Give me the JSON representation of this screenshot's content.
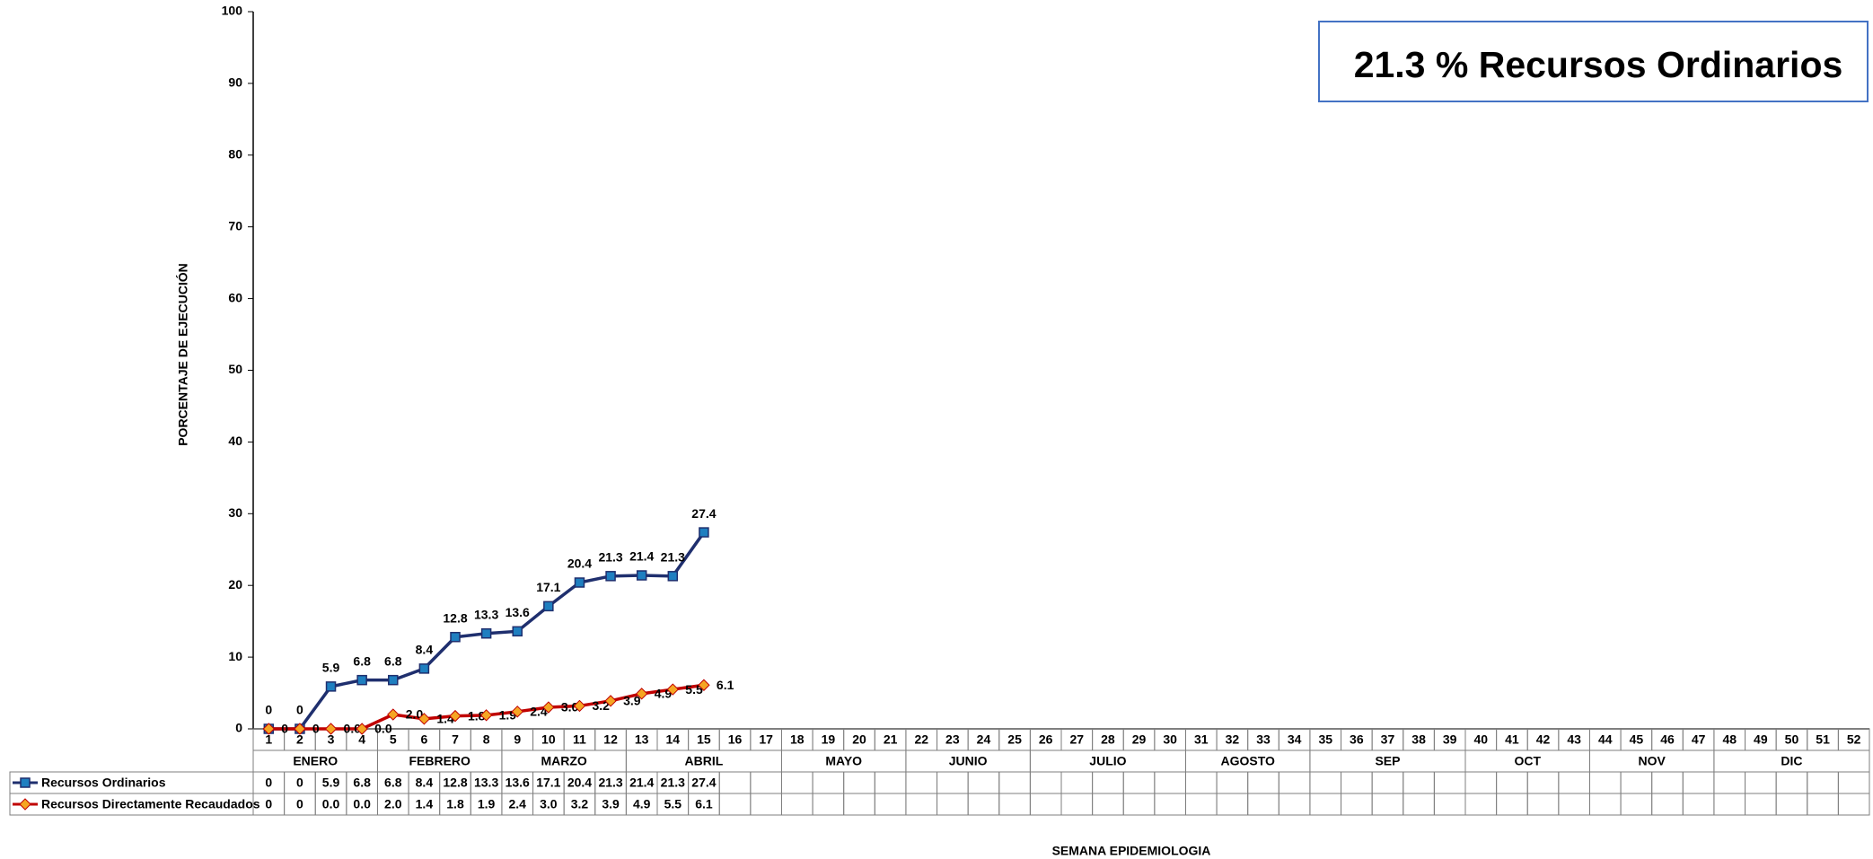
{
  "chart_data": {
    "type": "line",
    "y_label": "PORCENTAJE DE EJECUCIÓN",
    "x_label": "SEMANA EPIDEMIOLOGIA",
    "annotation": "21.3 % Recursos Ordinarios",
    "categories": [
      1,
      2,
      3,
      4,
      5,
      6,
      7,
      8,
      9,
      10,
      11,
      12,
      13,
      14,
      15,
      16,
      17,
      18,
      19,
      20,
      21,
      22,
      23,
      24,
      25,
      26,
      27,
      28,
      29,
      30,
      31,
      32,
      33,
      34,
      35,
      36,
      37,
      38,
      39,
      40,
      41,
      42,
      43,
      44,
      45,
      46,
      47,
      48,
      49,
      50,
      51,
      52
    ],
    "month_groups": [
      {
        "label": "ENERO",
        "weeks": 4
      },
      {
        "label": "FEBRERO",
        "weeks": 4
      },
      {
        "label": "MARZO",
        "weeks": 4
      },
      {
        "label": "ABRIL",
        "weeks": 5
      },
      {
        "label": "MAYO",
        "weeks": 4
      },
      {
        "label": "JUNIO",
        "weeks": 4
      },
      {
        "label": "JULIO",
        "weeks": 5
      },
      {
        "label": "AGOSTO",
        "weeks": 4
      },
      {
        "label": "SEP",
        "weeks": 5
      },
      {
        "label": "OCT",
        "weeks": 4
      },
      {
        "label": "NOV",
        "weeks": 4
      },
      {
        "label": "DIC",
        "weeks": 5
      }
    ],
    "series": [
      {
        "name": "Recursos Ordinarios",
        "color": "#1f2f6e",
        "marker_color": "#1f7fc0",
        "marker": "square",
        "values": [
          0,
          0,
          5.9,
          6.8,
          6.8,
          8.4,
          12.8,
          13.3,
          13.6,
          17.1,
          20.4,
          21.3,
          21.4,
          21.3,
          27.4,
          null,
          null,
          null,
          null,
          null,
          null,
          null,
          null,
          null,
          null,
          null,
          null,
          null,
          null,
          null,
          null,
          null,
          null,
          null,
          null,
          null,
          null,
          null,
          null,
          null,
          null,
          null,
          null,
          null,
          null,
          null,
          null,
          null,
          null,
          null,
          null,
          null
        ]
      },
      {
        "name": "Recursos Directamente Recaudados",
        "color": "#c00000",
        "marker_color": "#f5a623",
        "marker": "diamond",
        "values": [
          0,
          0,
          0,
          0,
          2,
          1.4,
          1.8,
          1.9,
          2.4,
          3,
          3.2,
          3.9,
          4.9,
          5.5,
          6.1,
          null,
          null,
          null,
          null,
          null,
          null,
          null,
          null,
          null,
          null,
          null,
          null,
          null,
          null,
          null,
          null,
          null,
          null,
          null,
          null,
          null,
          null,
          null,
          null,
          null,
          null,
          null,
          null,
          null,
          null,
          null,
          null,
          null,
          null,
          null,
          null,
          null
        ],
        "value_labels": [
          "0",
          "0",
          "0.0",
          "0.0",
          "2.0",
          "1.4",
          "1.8",
          "1.9",
          "2.4",
          "3.0",
          "3.2",
          "3.9",
          "4.9",
          "5.5",
          "6.1",
          null,
          null,
          null,
          null,
          null,
          null,
          null,
          null,
          null,
          null,
          null,
          null,
          null,
          null,
          null,
          null,
          null,
          null,
          null,
          null,
          null,
          null,
          null,
          null,
          null,
          null,
          null,
          null,
          null,
          null,
          null,
          null,
          null,
          null,
          null,
          null,
          null
        ]
      }
    ],
    "ylim": [
      0,
      100
    ],
    "yticks": [
      0,
      10,
      20,
      30,
      40,
      50,
      60,
      70,
      80,
      90,
      100
    ]
  }
}
